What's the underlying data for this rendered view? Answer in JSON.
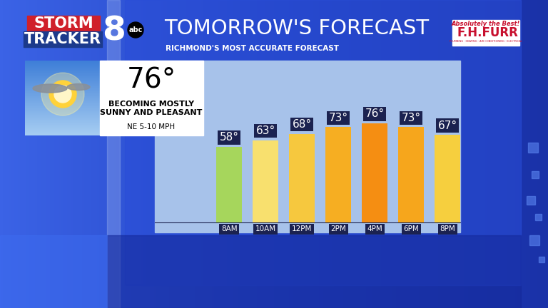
{
  "chart_data": {
    "type": "bar",
    "title": "TOMORROW'S FORECAST",
    "subtitle": "RICHMOND'S MOST ACCURATE FORECAST",
    "categories": [
      "8AM",
      "10AM",
      "12PM",
      "2PM",
      "4PM",
      "6PM",
      "8PM"
    ],
    "values": [
      58,
      63,
      68,
      73,
      76,
      73,
      67
    ],
    "value_labels": [
      "58°",
      "63°",
      "68°",
      "73°",
      "76°",
      "73°",
      "67°"
    ],
    "colors": [
      "#a6d65c",
      "#f8e06e",
      "#f6c83e",
      "#f6ae22",
      "#f58e12",
      "#f6a61c",
      "#f6cf3e"
    ],
    "ylim": [
      0,
      124
    ],
    "data_labels": true,
    "tick_labels": "x"
  },
  "header": {
    "logo": [
      "STORM",
      "TRACKER",
      "8",
      "abc"
    ],
    "sponsor": [
      "Absolutely the Best!",
      "F.H.FURR",
      "PLUMBING · HEATING · AIR CONDITIONING · ELECTRICAL"
    ]
  },
  "summary": {
    "high": {
      "value": 76,
      "label": "76°"
    },
    "condition": "BECOMING MOSTLY SUNNY AND PLEASANT",
    "wind": "NE 5-10 MPH"
  }
}
